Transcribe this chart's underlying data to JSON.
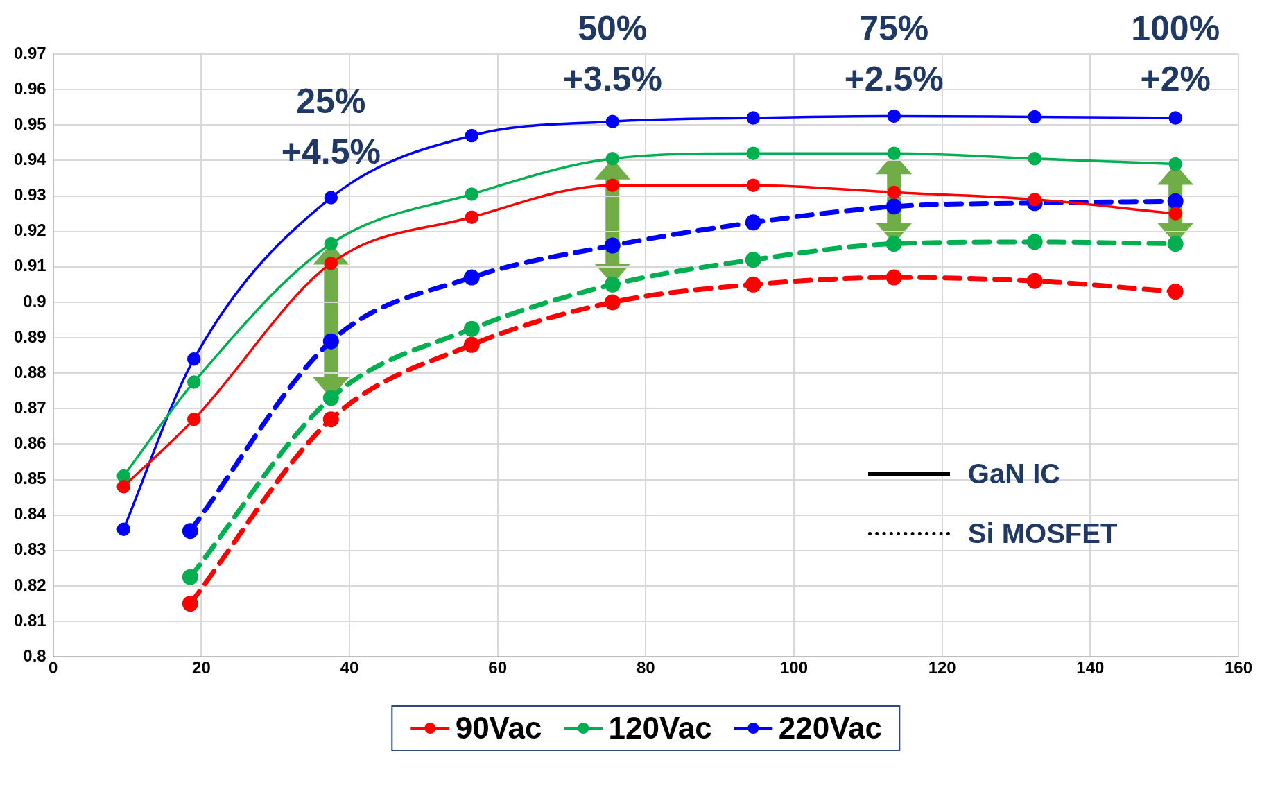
{
  "chart_data": {
    "type": "line",
    "xlim": [
      0,
      160
    ],
    "xticks": [
      0,
      20,
      40,
      60,
      80,
      100,
      120,
      140,
      160
    ],
    "ylim": [
      0.8,
      0.97
    ],
    "yticks": [
      0.8,
      0.81,
      0.82,
      0.83,
      0.84,
      0.85,
      0.86,
      0.87,
      0.88,
      0.89,
      0.9,
      0.91,
      0.92,
      0.93,
      0.94,
      0.95,
      0.96,
      0.97
    ],
    "grid": true,
    "legend": "bottom",
    "marker": "circle",
    "series": [
      {
        "name": "90Vac",
        "color": "#ff0000",
        "line_style": "solid",
        "x": [
          9.5,
          19,
          37.5,
          56.5,
          75.5,
          94.5,
          113.5,
          132.5,
          151.5
        ],
        "values": [
          0.848,
          0.867,
          0.911,
          0.924,
          0.933,
          0.933,
          0.931,
          0.929,
          0.925
        ]
      },
      {
        "name": "120Vac",
        "color": "#00b050",
        "line_style": "solid",
        "x": [
          9.5,
          19,
          37.5,
          56.5,
          75.5,
          94.5,
          113.5,
          132.5,
          151.5
        ],
        "values": [
          0.851,
          0.8775,
          0.9165,
          0.9305,
          0.9405,
          0.942,
          0.942,
          0.9405,
          0.939
        ]
      },
      {
        "name": "220Vac",
        "color": "#0000ff",
        "line_style": "solid",
        "x": [
          9.5,
          19,
          37.5,
          56.5,
          75.5,
          94.5,
          113.5,
          132.5,
          151.5
        ],
        "values": [
          0.836,
          0.884,
          0.9295,
          0.947,
          0.951,
          0.952,
          0.9525,
          0.9523,
          0.952
        ]
      },
      {
        "color": "#ff0000",
        "line_style": "dashed",
        "x": [
          18.5,
          37.5,
          56.5,
          75.5,
          94.5,
          113.5,
          132.5,
          151.5
        ],
        "values": [
          0.815,
          0.867,
          0.888,
          0.9,
          0.905,
          0.907,
          0.906,
          0.903
        ]
      },
      {
        "color": "#00b050",
        "line_style": "dashed",
        "x": [
          18.5,
          37.5,
          56.5,
          75.5,
          94.5,
          113.5,
          132.5,
          151.5
        ],
        "values": [
          0.8225,
          0.873,
          0.8925,
          0.905,
          0.912,
          0.9165,
          0.917,
          0.9165
        ]
      },
      {
        "color": "#0000ff",
        "line_style": "dashed",
        "x": [
          18.5,
          37.5,
          56.5,
          75.5,
          94.5,
          113.5,
          132.5,
          151.5
        ],
        "values": [
          0.8355,
          0.889,
          0.907,
          0.916,
          0.9225,
          0.927,
          0.928,
          0.9285
        ]
      }
    ],
    "annotations": [
      {
        "text": "25% +4.5%",
        "x": 37.5,
        "y": 0.9165
      },
      {
        "text": "50% +3.5%",
        "x": 75.5,
        "y": 0.9405
      },
      {
        "text": "75% +2.5%",
        "x": 113.5,
        "y": 0.942
      },
      {
        "text": "100% +2%",
        "x": 151.5,
        "y": 0.939
      },
      "GaN IC",
      "Si MOSFET"
    ]
  }
}
